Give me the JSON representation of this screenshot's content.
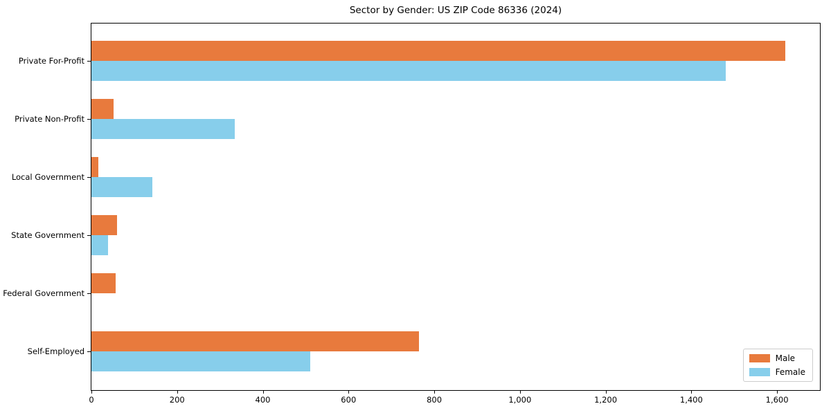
{
  "figure": {
    "title": "Sector by Gender: US ZIP Code 86336 (2024)"
  },
  "chart_data": {
    "type": "bar",
    "orientation": "horizontal",
    "title": "Sector by Gender: US ZIP Code 86336 (2024)",
    "categories": [
      "Private For-Profit",
      "Private Non-Profit",
      "Local Government",
      "State Government",
      "Federal Government",
      "Self-Employed"
    ],
    "series": [
      {
        "name": "Male",
        "color": "#e87a3d",
        "values": [
          1620,
          52,
          16,
          60,
          56,
          765
        ]
      },
      {
        "name": "Female",
        "color": "#87ceeb",
        "values": [
          1480,
          335,
          142,
          38,
          0,
          510
        ]
      }
    ],
    "xlabel": "",
    "ylabel": "",
    "xlim": [
      0,
      1700
    ],
    "x_tick_values": [
      0,
      200,
      400,
      600,
      800,
      1000,
      1200,
      1400,
      1600
    ],
    "x_tick_labels": [
      "0",
      "200",
      "400",
      "600",
      "800",
      "1,000",
      "1,200",
      "1,400",
      "1,600"
    ],
    "grid": false,
    "legend_position": "lower right",
    "frame": "full-box"
  }
}
